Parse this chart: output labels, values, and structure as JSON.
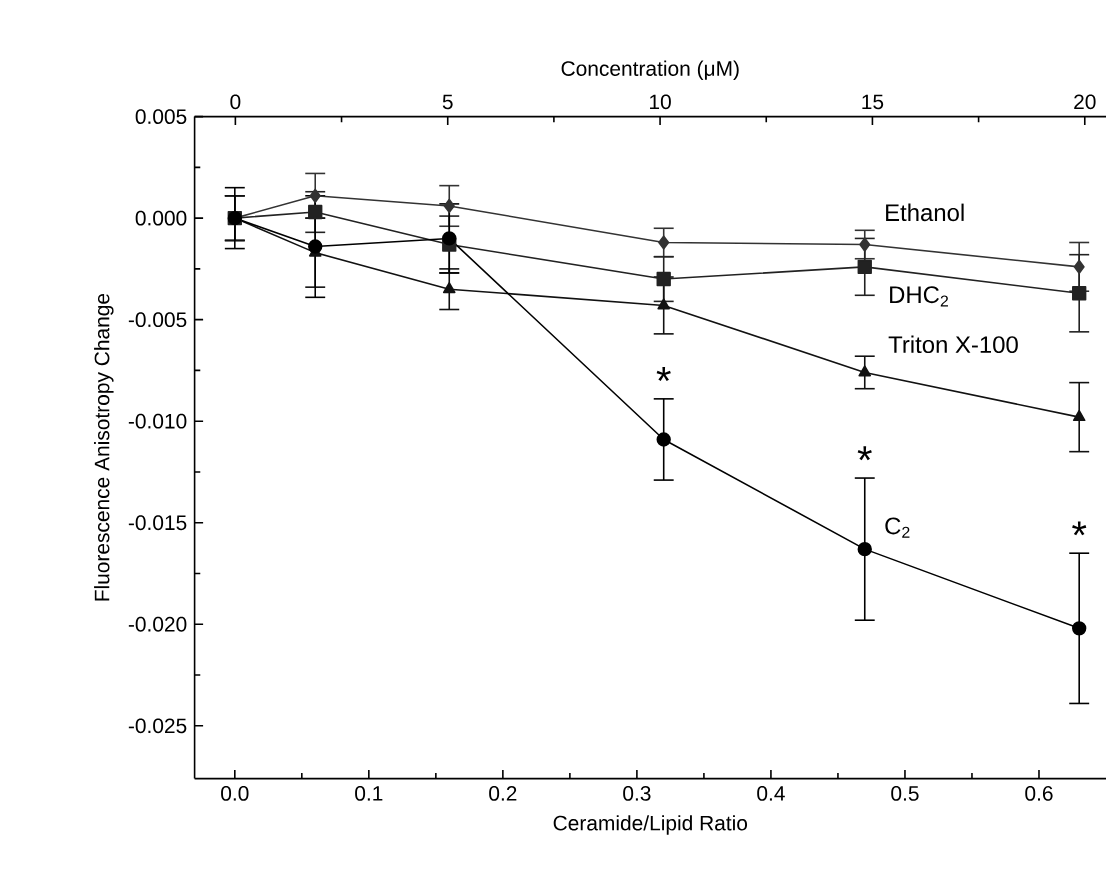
{
  "chart_data": {
    "type": "line",
    "xlabel": "Ceramide/Lipid Ratio",
    "ylabel": "Fluorescence Anisotropy Change",
    "x2label": "Concentration (μM)",
    "x": [
      0,
      0.06,
      0.16,
      0.32,
      0.47,
      0.63
    ],
    "xlim": [
      -0.03,
      0.65
    ],
    "xticks": [
      {
        "value": 0,
        "label": "0.0"
      },
      0.1,
      0.2,
      0.3,
      0.4,
      0.5,
      0.6
    ],
    "x2lim": [
      -0.96,
      20.5
    ],
    "x2ticks": [
      0,
      5,
      10,
      15,
      20
    ],
    "ylim": [
      -0.0276,
      0.005
    ],
    "yticks": [
      {
        "value": 0.005,
        "label": "0.005"
      },
      {
        "value": 0,
        "label": "0.000"
      },
      {
        "value": -0.005,
        "label": "-0.005"
      },
      {
        "value": -0.01,
        "label": "-0.010"
      },
      {
        "value": -0.015,
        "label": "-0.015"
      },
      {
        "value": -0.02,
        "label": "-0.020"
      },
      {
        "value": -0.025,
        "label": "-0.025"
      }
    ],
    "series": [
      {
        "name": "Ethanol",
        "color": "#333333",
        "marker": "diamond",
        "values": [
          0,
          0.0011,
          0.0006,
          -0.0012,
          -0.0013,
          -0.0024
        ],
        "errors": [
          0.0011,
          0.0011,
          0.001,
          0.0007,
          0.0007,
          0.0012
        ]
      },
      {
        "name": "DHC$_{2}$",
        "color": "#222222",
        "marker": "square",
        "values": [
          0,
          0.0003,
          -0.0013,
          -0.003,
          -0.0024,
          -0.0037
        ],
        "errors": [
          0.0011,
          0.001,
          0.0014,
          0.0011,
          0.0014,
          0.0019
        ]
      },
      {
        "name": "Triton X-100",
        "color": "#111111",
        "marker": "triangle",
        "values": [
          0,
          -0.0017,
          -0.0035,
          -0.0043,
          -0.0076,
          -0.0098
        ],
        "errors": [
          0.0011,
          0.0017,
          0.001,
          0.0014,
          0.0008,
          0.0017
        ]
      },
      {
        "name": "C$_{2}$",
        "color": "#000000",
        "marker": "circle",
        "values": [
          0,
          -0.0014,
          -0.001,
          -0.0109,
          -0.0163,
          -0.0202
        ],
        "errors": [
          0.0015,
          0.0025,
          0.0017,
          0.002,
          0.0035,
          0.0037
        ]
      }
    ],
    "annotations": [
      {
        "text": "*",
        "x": 0.32,
        "y": -0.0089
      },
      {
        "text": "*",
        "x": 0.47,
        "y": -0.0128
      },
      {
        "text": "*",
        "x": 0.63,
        "y": -0.0165
      }
    ],
    "grid": false,
    "line_style": "solid"
  }
}
